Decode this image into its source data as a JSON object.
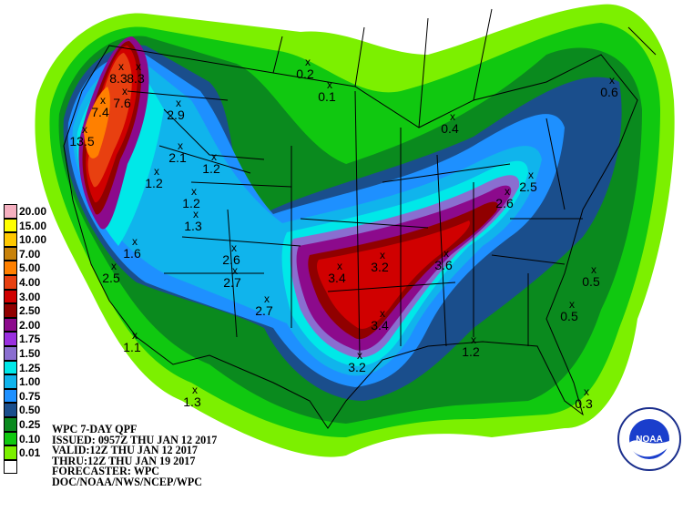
{
  "legend": [
    {
      "label": "20.00",
      "color": "#f5b0c0"
    },
    {
      "label": "15.00",
      "color": "#ffff00"
    },
    {
      "label": "10.00",
      "color": "#ffc800"
    },
    {
      "label": "7.00",
      "color": "#c8820a"
    },
    {
      "label": "5.00",
      "color": "#ff8000"
    },
    {
      "label": "4.00",
      "color": "#e84010"
    },
    {
      "label": "3.00",
      "color": "#d00000"
    },
    {
      "label": "2.50",
      "color": "#900000"
    },
    {
      "label": "2.00",
      "color": "#8c0a8c"
    },
    {
      "label": "1.75",
      "color": "#9a30e0"
    },
    {
      "label": "1.50",
      "color": "#8a6ed0"
    },
    {
      "label": "1.25",
      "color": "#00e8e8"
    },
    {
      "label": "1.00",
      "color": "#10b4ec"
    },
    {
      "label": "0.75",
      "color": "#1e90ff"
    },
    {
      "label": "0.50",
      "color": "#1a4e8c"
    },
    {
      "label": "0.25",
      "color": "#0a8a1e"
    },
    {
      "label": "0.10",
      "color": "#10c810"
    },
    {
      "label": "0.01",
      "color": "#7cf000"
    },
    {
      "label": "",
      "color": "#ffffff"
    }
  ],
  "info": [
    "WPC 7-DAY QPF",
    "ISSUED: 0957Z THU JAN 12 2017",
    "VALID:12Z THU JAN 12 2017",
    "THRU:12Z THU JAN 19 2017",
    "FORECASTER: WPC",
    "DOC/NOAA/NWS/NCEP/WPC"
  ],
  "logo_text": "NOAA",
  "points": [
    "0.2",
    "0.1",
    "0.6",
    "0.4",
    "8.3",
    "8.3",
    "7.6",
    "7.4",
    "13.5",
    "2.9",
    "2.1",
    "1.2",
    "1.2",
    "1.2",
    "1.3",
    "1.6",
    "2.5",
    "2.6",
    "2.7",
    "2.7",
    "1.1",
    "1.3",
    "3.4",
    "3.2",
    "3.6",
    "3.4",
    "3.2",
    "1.2",
    "2.6",
    "2.5",
    "0.5",
    "0.5",
    "0.3"
  ]
}
